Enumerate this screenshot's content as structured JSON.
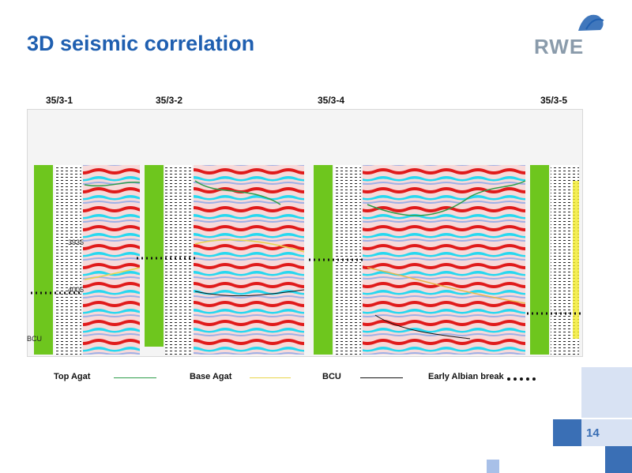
{
  "title": "3D seismic correlation",
  "logo": {
    "text": "RWE"
  },
  "wells": [
    "35/3-1",
    "35/3-2",
    "35/3-4",
    "35/3-5"
  ],
  "depth_markers": [
    "3935",
    "4005"
  ],
  "bcu_marker": "BCU",
  "legend": [
    {
      "label": "Top Agat",
      "color": "#2e9c4a",
      "style": "solid"
    },
    {
      "label": "Base Agat",
      "color": "#e8d54a",
      "style": "solid"
    },
    {
      "label": "BCU",
      "color": "#111111",
      "style": "solid"
    },
    {
      "label": "Early Albian break",
      "color": "#111111",
      "style": "dots"
    }
  ],
  "page_number": "14",
  "colors": {
    "title": "#1f5fb0",
    "accent": "#3a6fb5",
    "log_fill": "#6ec61e",
    "seismic_red": "#e01b1b",
    "seismic_cyan": "#27d8f0"
  }
}
